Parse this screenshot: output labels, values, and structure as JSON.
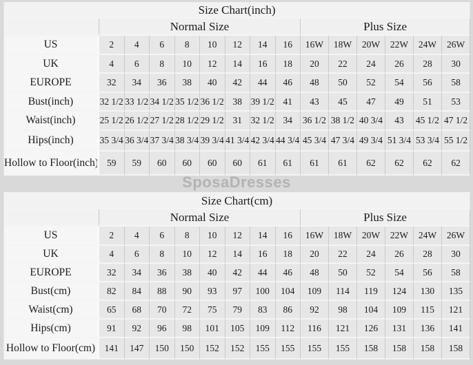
{
  "page": {
    "watermark_text": "SposaDresses",
    "colors": {
      "page_background": "#d9d9d9",
      "data_cell_background": "#e7e7e7",
      "label_cell_background": "#f6f6f6",
      "header_background": "#f1f1f1",
      "grid_line": "#c9c9c9",
      "watermark": "#b3b3b3",
      "text": "#1b1b1b"
    }
  },
  "tables": [
    {
      "title": "Size Chart(inch)",
      "group_headers": [
        "Normal Size",
        "Plus Size"
      ],
      "rows": [
        {
          "label": "US",
          "values": [
            "2",
            "4",
            "6",
            "8",
            "10",
            "12",
            "14",
            "16",
            "16W",
            "18W",
            "20W",
            "22W",
            "24W",
            "26W"
          ]
        },
        {
          "label": "UK",
          "values": [
            "4",
            "6",
            "8",
            "10",
            "12",
            "14",
            "16",
            "18",
            "20",
            "22",
            "24",
            "26",
            "28",
            "30"
          ]
        },
        {
          "label": "EUROPE",
          "values": [
            "32",
            "34",
            "36",
            "38",
            "40",
            "42",
            "44",
            "46",
            "48",
            "50",
            "52",
            "54",
            "56",
            "58"
          ]
        },
        {
          "label": "Bust(inch)",
          "values": [
            "32 1/2",
            "33 1/2",
            "34 1/2",
            "35 1/2",
            "36 1/2",
            "38",
            "39 1/2",
            "41",
            "43",
            "45",
            "47",
            "49",
            "51",
            "53"
          ]
        },
        {
          "label": "Waist(inch)",
          "values": [
            "25 1/2",
            "26 1/2",
            "27 1/2",
            "28 1/2",
            "29 1/2",
            "31",
            "32 1/2",
            "34",
            "36 1/2",
            "38 1/2",
            "40 3/4",
            "43",
            "45 1/2",
            "47 1/2"
          ]
        },
        {
          "label": "Hips(inch)",
          "values": [
            "35 3/4",
            "36 3/4",
            "37 3/4",
            "38 3/4",
            "39 3/4",
            "41 3/4",
            "42 3/4",
            "44 3/4",
            "45 3/4",
            "47 3/4",
            "49 3/4",
            "51 3/4",
            "53 3/4",
            "55 1/2"
          ]
        },
        {
          "label": "Hollow to Floor(inch)",
          "values": [
            "59",
            "59",
            "60",
            "60",
            "60",
            "60",
            "61",
            "61",
            "61",
            "61",
            "62",
            "62",
            "62",
            "62"
          ]
        }
      ]
    },
    {
      "title": "Size Chart(cm)",
      "group_headers": [
        "Normal Size",
        "Plus Size"
      ],
      "rows": [
        {
          "label": "US",
          "values": [
            "2",
            "4",
            "6",
            "8",
            "10",
            "12",
            "14",
            "16",
            "16W",
            "18W",
            "20W",
            "22W",
            "24W",
            "26W"
          ]
        },
        {
          "label": "UK",
          "values": [
            "4",
            "6",
            "8",
            "10",
            "12",
            "14",
            "16",
            "18",
            "20",
            "22",
            "24",
            "26",
            "28",
            "30"
          ]
        },
        {
          "label": "EUROPE",
          "values": [
            "32",
            "34",
            "36",
            "38",
            "40",
            "42",
            "44",
            "46",
            "48",
            "50",
            "52",
            "54",
            "56",
            "58"
          ]
        },
        {
          "label": "Bust(cm)",
          "values": [
            "82",
            "84",
            "88",
            "90",
            "93",
            "97",
            "100",
            "104",
            "109",
            "114",
            "119",
            "124",
            "130",
            "135"
          ]
        },
        {
          "label": "Waist(cm)",
          "values": [
            "65",
            "68",
            "70",
            "72",
            "75",
            "79",
            "83",
            "86",
            "92",
            "98",
            "104",
            "109",
            "115",
            "121"
          ]
        },
        {
          "label": "Hips(cm)",
          "values": [
            "91",
            "92",
            "96",
            "98",
            "101",
            "105",
            "109",
            "112",
            "116",
            "121",
            "126",
            "131",
            "136",
            "141"
          ]
        },
        {
          "label": "Hollow to Floor(cm)",
          "values": [
            "141",
            "147",
            "150",
            "150",
            "152",
            "152",
            "155",
            "155",
            "155",
            "155",
            "158",
            "158",
            "158",
            "158"
          ]
        }
      ]
    }
  ]
}
